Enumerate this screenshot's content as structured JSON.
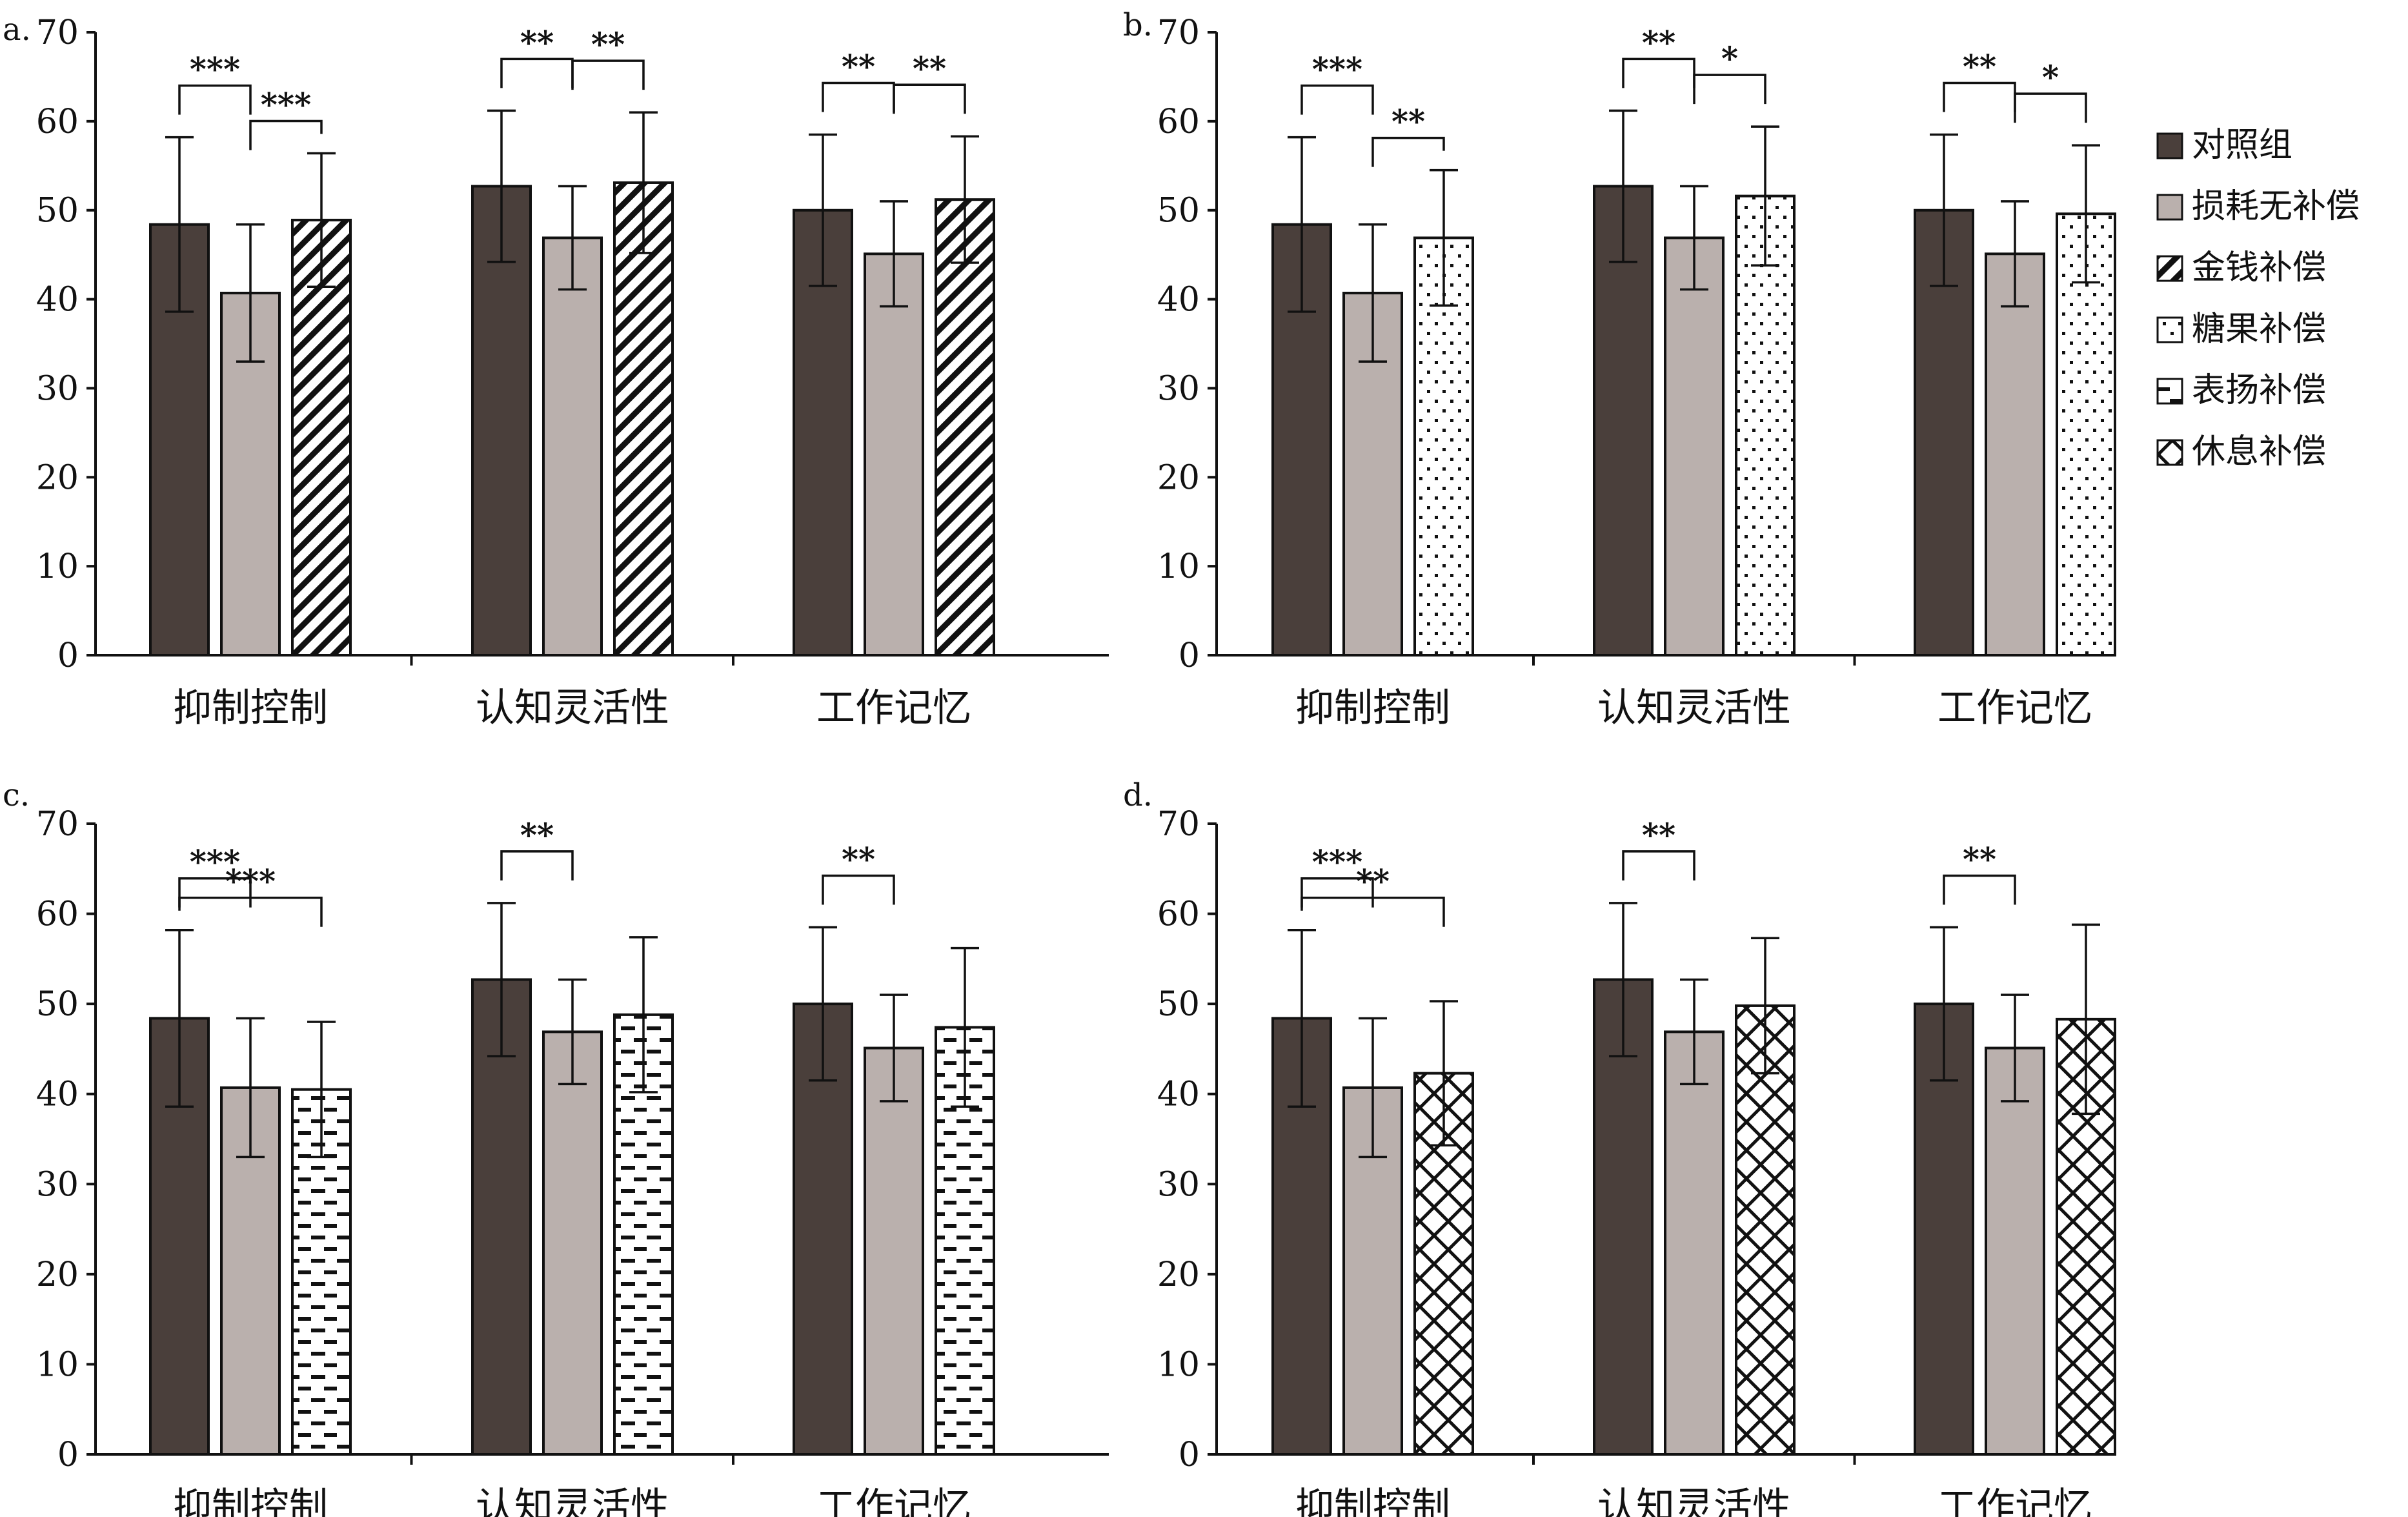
{
  "colors": {
    "control": "#4a3f3b",
    "depletion": "#bab0ad",
    "axis": "#111111",
    "pattern": "#111111"
  },
  "legend": {
    "items": [
      {
        "label": "对照组",
        "pattern": "control"
      },
      {
        "label": "损耗无补偿",
        "pattern": "depletion"
      },
      {
        "label": "金钱补偿",
        "pattern": "money"
      },
      {
        "label": "糖果补偿",
        "pattern": "candy"
      },
      {
        "label": "表扬补偿",
        "pattern": "praise"
      },
      {
        "label": "休息补偿",
        "pattern": "rest"
      }
    ]
  },
  "chart_data": [
    {
      "type": "bar",
      "panel": "a.",
      "categories": [
        "抑制控制",
        "认知灵活性",
        "工作记忆"
      ],
      "ylim": [
        0,
        70
      ],
      "yticks": [
        0,
        10,
        20,
        30,
        40,
        50,
        60,
        70
      ],
      "series": [
        {
          "name": "对照组",
          "pattern": "control",
          "values": [
            48.4,
            52.7,
            50.0
          ],
          "errors": [
            9.8,
            8.5,
            8.5
          ]
        },
        {
          "name": "损耗无补偿",
          "pattern": "depletion",
          "values": [
            40.7,
            46.9,
            45.1
          ],
          "errors": [
            7.7,
            5.8,
            5.9
          ]
        },
        {
          "name": "金钱补偿",
          "pattern": "money",
          "values": [
            48.9,
            53.1,
            51.2
          ],
          "errors": [
            7.5,
            7.9,
            7.1
          ]
        }
      ],
      "significance": [
        {
          "group": 0,
          "from": 0,
          "to": 1,
          "label": "***",
          "level": 1
        },
        {
          "group": 0,
          "from": 1,
          "to": 2,
          "label": "***",
          "level": 0
        },
        {
          "group": 1,
          "from": 0,
          "to": 1,
          "label": "**",
          "level": 1
        },
        {
          "group": 1,
          "from": 1,
          "to": 2,
          "label": "**",
          "level": 1
        },
        {
          "group": 2,
          "from": 0,
          "to": 1,
          "label": "**",
          "level": 1
        },
        {
          "group": 2,
          "from": 1,
          "to": 2,
          "label": "**",
          "level": 1
        }
      ]
    },
    {
      "type": "bar",
      "panel": "b.",
      "categories": [
        "抑制控制",
        "认知灵活性",
        "工作记忆"
      ],
      "ylim": [
        0,
        70
      ],
      "yticks": [
        0,
        10,
        20,
        30,
        40,
        50,
        60,
        70
      ],
      "series": [
        {
          "name": "对照组",
          "pattern": "control",
          "values": [
            48.4,
            52.7,
            50.0
          ],
          "errors": [
            9.8,
            8.5,
            8.5
          ]
        },
        {
          "name": "损耗无补偿",
          "pattern": "depletion",
          "values": [
            40.7,
            46.9,
            45.1
          ],
          "errors": [
            7.7,
            5.8,
            5.9
          ]
        },
        {
          "name": "糖果补偿",
          "pattern": "candy",
          "values": [
            46.9,
            51.6,
            49.6
          ],
          "errors": [
            7.6,
            7.8,
            7.7
          ]
        }
      ],
      "significance": [
        {
          "group": 0,
          "from": 0,
          "to": 1,
          "label": "***",
          "level": 1
        },
        {
          "group": 0,
          "from": 1,
          "to": 2,
          "label": "**",
          "level": 0
        },
        {
          "group": 1,
          "from": 0,
          "to": 1,
          "label": "**",
          "level": 1
        },
        {
          "group": 1,
          "from": 1,
          "to": 2,
          "label": "*",
          "level": 1
        },
        {
          "group": 2,
          "from": 0,
          "to": 1,
          "label": "**",
          "level": 1
        },
        {
          "group": 2,
          "from": 1,
          "to": 2,
          "label": "*",
          "level": 1
        }
      ]
    },
    {
      "type": "bar",
      "panel": "c.",
      "categories": [
        "抑制控制",
        "认知灵活性",
        "工作记忆"
      ],
      "ylim": [
        0,
        70
      ],
      "yticks": [
        0,
        10,
        20,
        30,
        40,
        50,
        60,
        70
      ],
      "series": [
        {
          "name": "对照组",
          "pattern": "control",
          "values": [
            48.4,
            52.7,
            50.0
          ],
          "errors": [
            9.8,
            8.5,
            8.5
          ]
        },
        {
          "name": "损耗无补偿",
          "pattern": "depletion",
          "values": [
            40.7,
            46.9,
            45.1
          ],
          "errors": [
            7.7,
            5.8,
            5.9
          ]
        },
        {
          "name": "表扬补偿",
          "pattern": "praise",
          "values": [
            40.5,
            48.8,
            47.4
          ],
          "errors": [
            7.5,
            8.6,
            8.8
          ]
        }
      ],
      "significance": [
        {
          "group": 0,
          "from": 0,
          "to": 1,
          "label": "***",
          "level": 1
        },
        {
          "group": 0,
          "from": 0,
          "to": 2,
          "label": "***",
          "level": 0
        },
        {
          "group": 1,
          "from": 0,
          "to": 1,
          "label": "**",
          "level": 1
        },
        {
          "group": 2,
          "from": 0,
          "to": 1,
          "label": "**",
          "level": 1
        }
      ]
    },
    {
      "type": "bar",
      "panel": "d.",
      "categories": [
        "抑制控制",
        "认知灵活性",
        "工作记忆"
      ],
      "ylim": [
        0,
        70
      ],
      "yticks": [
        0,
        10,
        20,
        30,
        40,
        50,
        60,
        70
      ],
      "series": [
        {
          "name": "对照组",
          "pattern": "control",
          "values": [
            48.4,
            52.7,
            50.0
          ],
          "errors": [
            9.8,
            8.5,
            8.5
          ]
        },
        {
          "name": "损耗无补偿",
          "pattern": "depletion",
          "values": [
            40.7,
            46.9,
            45.1
          ],
          "errors": [
            7.7,
            5.8,
            5.9
          ]
        },
        {
          "name": "休息补偿",
          "pattern": "rest",
          "values": [
            42.3,
            49.8,
            48.3
          ],
          "errors": [
            8.0,
            7.5,
            10.5
          ]
        }
      ],
      "significance": [
        {
          "group": 0,
          "from": 0,
          "to": 1,
          "label": "***",
          "level": 1
        },
        {
          "group": 0,
          "from": 0,
          "to": 2,
          "label": "**",
          "level": 0
        },
        {
          "group": 1,
          "from": 0,
          "to": 1,
          "label": "**",
          "level": 1
        },
        {
          "group": 2,
          "from": 0,
          "to": 1,
          "label": "**",
          "level": 1
        }
      ]
    }
  ]
}
